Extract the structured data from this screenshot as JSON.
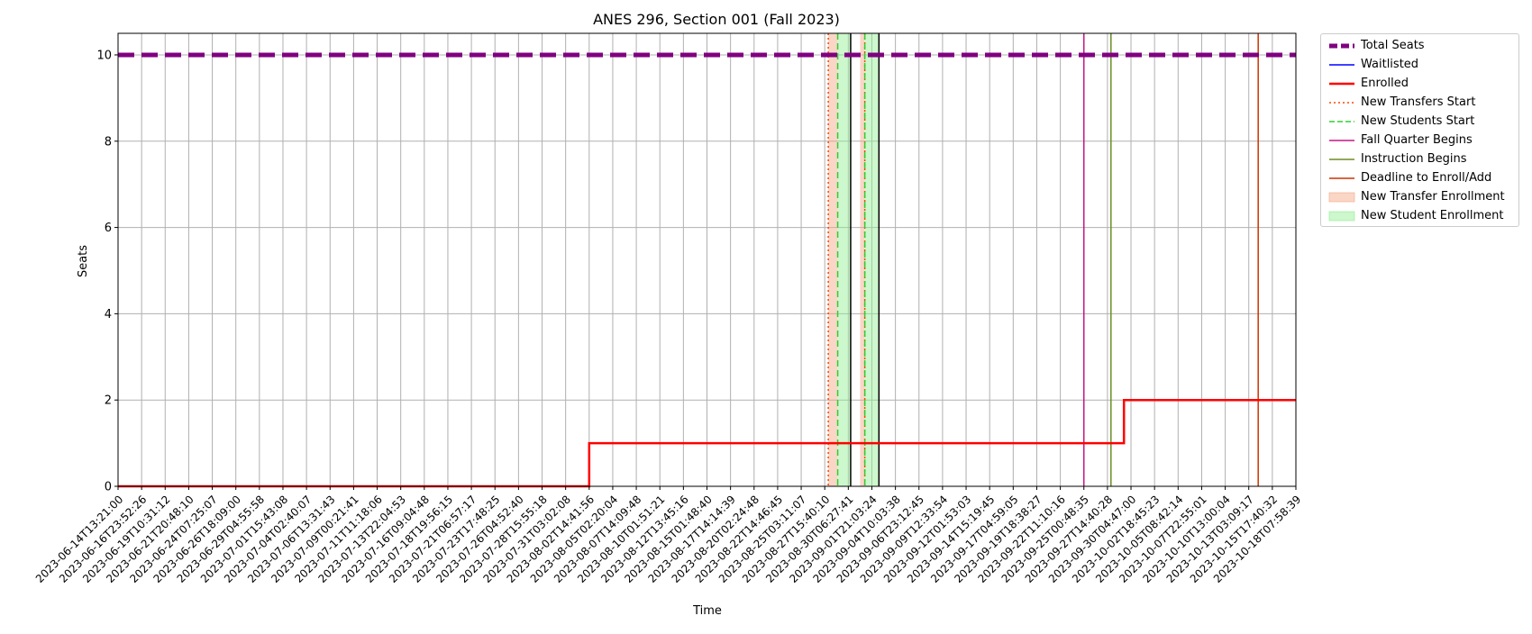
{
  "chart_data": {
    "type": "line",
    "title": "ANES 296, Section 001 (Fall 2023)",
    "xlabel": "Time",
    "ylabel": "Seats",
    "ylim": [
      0,
      10.5
    ],
    "yticks": [
      0,
      2,
      4,
      6,
      8,
      10
    ],
    "grid": true,
    "legend_placement": "outside-right",
    "x_tick_labels": [
      "2023-06-14T13:21:00",
      "2023-06-16T23:52:26",
      "2023-06-19T10:31:12",
      "2023-06-21T20:48:10",
      "2023-06-24T07:25:07",
      "2023-06-26T18:09:00",
      "2023-06-29T04:55:58",
      "2023-07-01T15:43:08",
      "2023-07-04T02:40:07",
      "2023-07-06T13:31:43",
      "2023-07-09T00:21:41",
      "2023-07-11T11:18:06",
      "2023-07-13T22:04:53",
      "2023-07-16T09:04:48",
      "2023-07-18T19:56:15",
      "2023-07-21T06:57:17",
      "2023-07-23T17:48:25",
      "2023-07-26T04:52:40",
      "2023-07-28T15:55:18",
      "2023-07-31T03:02:08",
      "2023-08-02T14:41:56",
      "2023-08-05T02:20:04",
      "2023-08-07T14:09:48",
      "2023-08-10T01:51:21",
      "2023-08-12T13:45:16",
      "2023-08-15T01:48:40",
      "2023-08-17T14:14:39",
      "2023-08-20T02:24:48",
      "2023-08-22T14:46:45",
      "2023-08-25T03:11:07",
      "2023-08-27T15:40:10",
      "2023-08-30T06:27:41",
      "2023-09-01T21:03:24",
      "2023-09-04T10:03:38",
      "2023-09-06T23:12:45",
      "2023-09-09T12:33:54",
      "2023-09-12T01:53:03",
      "2023-09-14T15:19:45",
      "2023-09-17T04:59:05",
      "2023-09-19T18:38:27",
      "2023-09-22T11:10:16",
      "2023-09-25T00:48:35",
      "2023-09-27T14:40:28",
      "2023-09-30T04:47:00",
      "2023-10-02T18:45:23",
      "2023-10-05T08:42:14",
      "2023-10-07T22:55:01",
      "2023-10-10T13:00:04",
      "2023-10-13T03:09:17",
      "2023-10-15T17:40:32",
      "2023-10-18T07:58:39"
    ],
    "series": [
      {
        "name": "Total Seats",
        "color": "#800080",
        "style": "dashed-thick",
        "points": [
          [
            0,
            10
          ],
          [
            50,
            10
          ]
        ]
      },
      {
        "name": "Waitlisted",
        "color": "#0000ff",
        "style": "solid",
        "points": [
          [
            0,
            0
          ],
          [
            50,
            0
          ]
        ]
      },
      {
        "name": "Enrolled",
        "color": "#ff0000",
        "style": "solid-thick",
        "step": true,
        "points": [
          [
            0,
            0
          ],
          [
            20,
            0
          ],
          [
            20,
            1
          ],
          [
            42.7,
            1
          ],
          [
            42.7,
            2
          ],
          [
            50,
            2
          ]
        ]
      }
    ],
    "vertical_markers": [
      {
        "name": "New Transfers Start",
        "color": "#ff4500",
        "style": "dotted",
        "x": [
          30.15,
          31.7
        ]
      },
      {
        "name": "New Students Start",
        "color": "#32cd32",
        "style": "dashed",
        "x": [
          30.55,
          31.7
        ]
      },
      {
        "name": "Fall Quarter Begins",
        "color": "#c71585",
        "style": "solid",
        "x": [
          41
        ]
      },
      {
        "name": "Instruction Begins",
        "color": "#6b8e23",
        "style": "solid",
        "x": [
          42.15
        ]
      },
      {
        "name": "Deadline to Enroll/Add",
        "color": "#cc3300",
        "style": "solid",
        "x": [
          48.4
        ]
      }
    ],
    "shaded_regions": [
      {
        "name": "New Transfer Enrollment",
        "color": "#f4a582",
        "ranges": [
          [
            30.15,
            30.55
          ],
          [
            31.5,
            31.7
          ]
        ]
      },
      {
        "name": "New Student Enrollment",
        "color": "#90ee90",
        "ranges": [
          [
            30.55,
            31.1
          ],
          [
            31.7,
            32.3
          ]
        ]
      }
    ],
    "black_lines_x": [
      31.1,
      32.3
    ],
    "legend": [
      {
        "label": "Total Seats",
        "color": "#800080",
        "kind": "dashed-thick"
      },
      {
        "label": "Waitlisted",
        "color": "#0000ff",
        "kind": "solid"
      },
      {
        "label": "Enrolled",
        "color": "#ff0000",
        "kind": "solid-thick"
      },
      {
        "label": "New Transfers Start",
        "color": "#ff4500",
        "kind": "dotted"
      },
      {
        "label": "New Students Start",
        "color": "#32cd32",
        "kind": "dashed"
      },
      {
        "label": "Fall Quarter Begins",
        "color": "#c71585",
        "kind": "solid"
      },
      {
        "label": "Instruction Begins",
        "color": "#6b8e23",
        "kind": "solid"
      },
      {
        "label": "Deadline to Enroll/Add",
        "color": "#cc3300",
        "kind": "solid"
      },
      {
        "label": "New Transfer Enrollment",
        "color": "#f4a582",
        "kind": "patch"
      },
      {
        "label": "New Student Enrollment",
        "color": "#90ee90",
        "kind": "patch"
      }
    ]
  }
}
